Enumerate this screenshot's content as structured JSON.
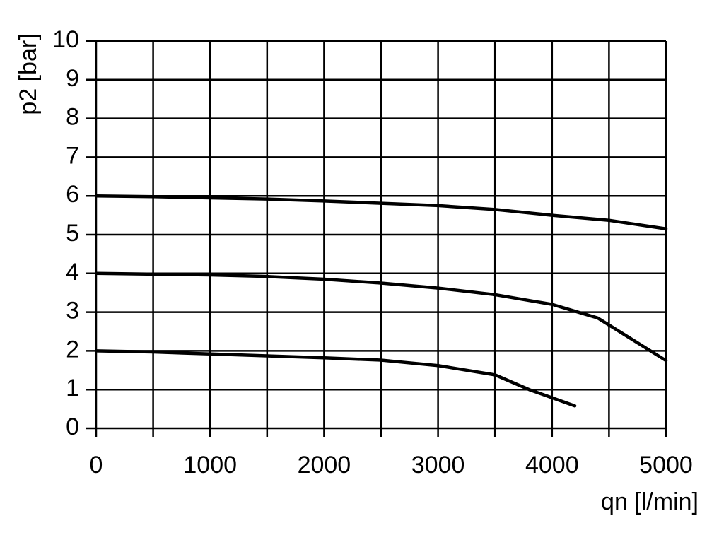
{
  "chart_data": {
    "type": "line",
    "ylabel": "p2 [bar]",
    "xlabel": "qn [l/min]",
    "xlim": [
      0,
      5000
    ],
    "xticks": [
      0,
      1000,
      2000,
      3000,
      4000,
      5000
    ],
    "x_minor_ticks": [
      500,
      1500,
      2500,
      3500,
      4500
    ],
    "ylim": [
      0,
      10
    ],
    "yticks": [
      0,
      1,
      2,
      3,
      4,
      5,
      6,
      7,
      8,
      9,
      10
    ],
    "grid": true,
    "series": [
      {
        "color": "#000000",
        "x": [
          0,
          500,
          1000,
          1500,
          2000,
          2500,
          3000,
          3500,
          4000,
          4500,
          5000
        ],
        "values": [
          6.0,
          5.98,
          5.95,
          5.92,
          5.87,
          5.81,
          5.75,
          5.65,
          5.5,
          5.37,
          5.15
        ]
      },
      {
        "color": "#000000",
        "x": [
          0,
          500,
          1000,
          1500,
          2000,
          2500,
          3000,
          3500,
          4000,
          4400,
          5000
        ],
        "values": [
          4.0,
          3.98,
          3.96,
          3.92,
          3.85,
          3.75,
          3.62,
          3.45,
          3.2,
          2.85,
          1.75
        ]
      },
      {
        "color": "#000000",
        "x": [
          0,
          500,
          1000,
          1500,
          2000,
          2500,
          3000,
          3500,
          3800,
          4200
        ],
        "values": [
          2.0,
          1.97,
          1.92,
          1.87,
          1.82,
          1.76,
          1.62,
          1.38,
          1.0,
          0.58
        ]
      }
    ]
  }
}
